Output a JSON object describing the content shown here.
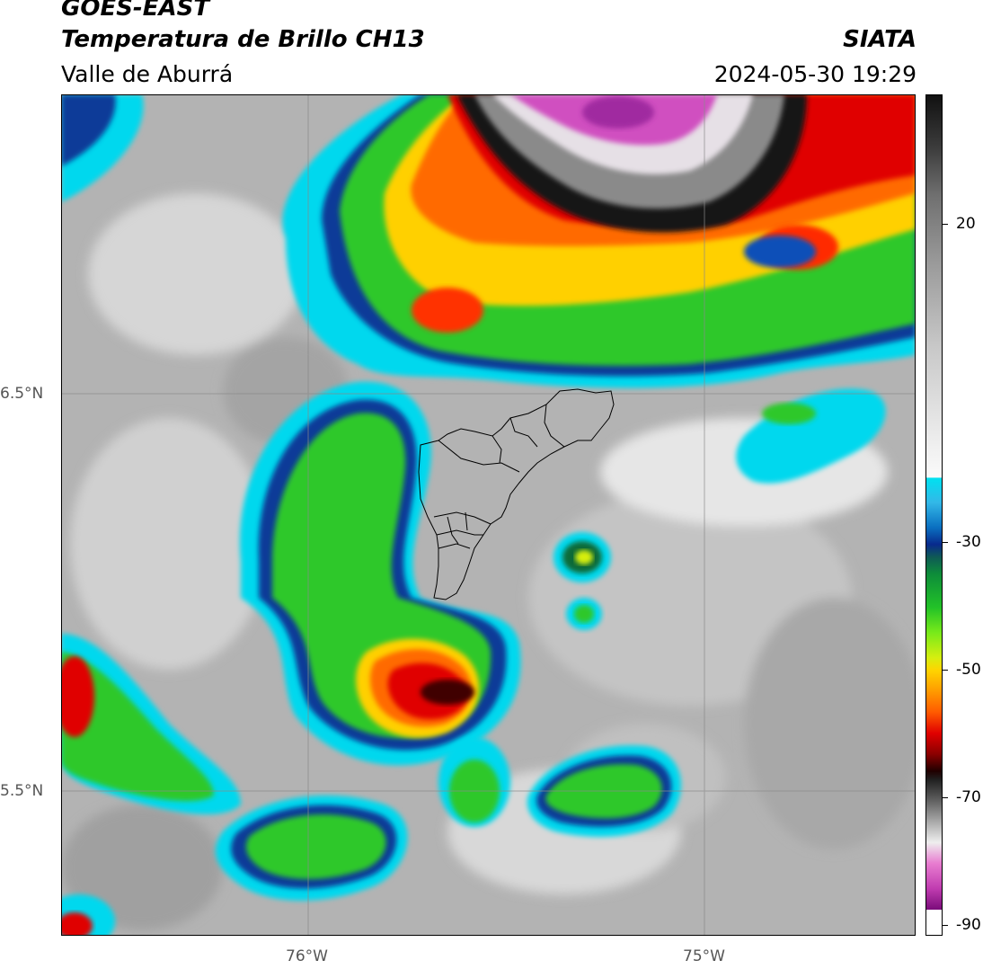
{
  "header": {
    "satellite": "GOES-EAST",
    "product": "Temperatura de Brillo CH13",
    "region": "Valle de Aburrá",
    "agency": "SIATA",
    "timestamp": "2024-05-30 19:29"
  },
  "map": {
    "lat_labels": [
      "6.5°N",
      "5.5°N"
    ],
    "lon_labels": [
      "76°W",
      "75°W"
    ]
  },
  "colorbar": {
    "tick_labels": [
      "20",
      "-30",
      "-50",
      "-70",
      "-90"
    ],
    "tick_values": [
      20,
      -30,
      -50,
      -70,
      -90
    ]
  },
  "colors": {
    "background_gray": "#b5b5b5",
    "cold_core": "#d050c0",
    "warm_cloud_free": "#c8c8c8"
  }
}
